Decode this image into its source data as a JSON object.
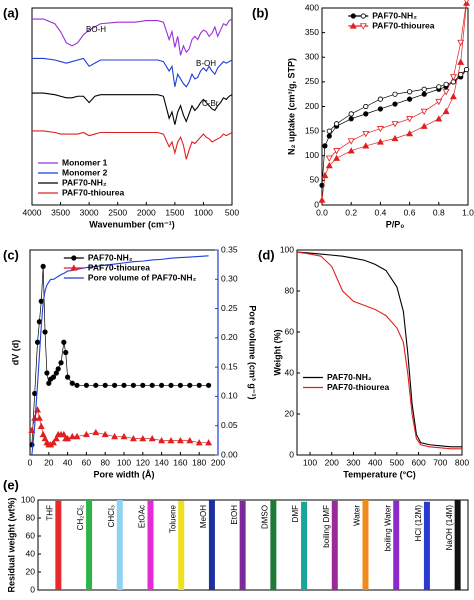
{
  "chart_data": [
    {
      "type": "line",
      "label": "(a)",
      "xlabel": "Wavenumber (cm⁻¹)",
      "x": [
        4000,
        3800,
        3600,
        3500,
        3400,
        3300,
        3200,
        3100,
        3000,
        2900,
        2800,
        2500,
        2200,
        2000,
        1800,
        1700,
        1600,
        1550,
        1500,
        1450,
        1400,
        1350,
        1300,
        1250,
        1200,
        1150,
        1100,
        1050,
        1000,
        950,
        900,
        850,
        800,
        750,
        700,
        650,
        600,
        550,
        500
      ],
      "xlim": [
        4000,
        500
      ],
      "xticks": [
        4000,
        3500,
        3000,
        2500,
        2000,
        1500,
        1000,
        500
      ],
      "ylim": [
        -25,
        100
      ],
      "legend": "lower left",
      "annotations": [
        "BO-H",
        "B-OH",
        "C-Br"
      ],
      "series": [
        {
          "name": "Monomer 1",
          "color": "#9b30d9",
          "values": [
            93,
            93,
            90,
            85,
            78,
            76,
            78,
            83,
            86,
            88,
            90,
            91,
            91,
            92,
            92,
            91,
            80,
            85,
            75,
            82,
            70,
            76,
            72,
            74,
            80,
            82,
            80,
            84,
            86,
            85,
            82,
            84,
            88,
            82,
            86,
            90,
            89,
            92,
            93
          ]
        },
        {
          "name": "Monomer 2",
          "color": "#1f3fd6",
          "values": [
            68,
            68,
            67,
            66,
            65,
            66,
            67,
            68,
            63,
            65,
            67,
            67,
            67,
            67,
            67,
            66,
            60,
            63,
            50,
            58,
            55,
            52,
            50,
            53,
            58,
            55,
            56,
            60,
            62,
            60,
            63,
            60,
            58,
            62,
            64,
            66,
            65,
            66,
            67
          ]
        },
        {
          "name": "PAF70-NH₂",
          "color": "#000000",
          "values": [
            46,
            46,
            45,
            44,
            43,
            43,
            44,
            44,
            40,
            44,
            45,
            45,
            45,
            45,
            45,
            44,
            30,
            34,
            26,
            34,
            38,
            32,
            28,
            33,
            38,
            35,
            37,
            40,
            42,
            40,
            38,
            36,
            35,
            38,
            40,
            43,
            42,
            44,
            45
          ]
        },
        {
          "name": "PAF70-thiourea",
          "color": "#e02020",
          "values": [
            22,
            22,
            21,
            20,
            20,
            20,
            20,
            21,
            19,
            20,
            21,
            21,
            21,
            21,
            21,
            20,
            12,
            15,
            8,
            15,
            18,
            13,
            4,
            10,
            15,
            14,
            16,
            18,
            20,
            18,
            17,
            15,
            16,
            17,
            18,
            20,
            19,
            20,
            21
          ]
        }
      ]
    },
    {
      "type": "line",
      "label": "(b)",
      "xlabel": "P/P₀",
      "ylabel": "N₂ uptake (cm³/g, STP)",
      "x": [
        0.0,
        0.02,
        0.05,
        0.1,
        0.2,
        0.3,
        0.4,
        0.5,
        0.6,
        0.7,
        0.8,
        0.85,
        0.9,
        0.95,
        0.99
      ],
      "xlim": [
        0,
        1
      ],
      "xticks": [
        {
          "value": 0,
          "label": "0.0"
        },
        0.2,
        0.4,
        0.6,
        0.8,
        {
          "value": 1,
          "label": "1.0"
        }
      ],
      "ylim": [
        0,
        400
      ],
      "yticks": [
        0,
        50,
        100,
        150,
        200,
        250,
        300,
        350,
        400
      ],
      "legend": "upper center",
      "series": [
        {
          "name": "PAF70-NH₂",
          "color": "#000000",
          "marker": "circle",
          "values": [
            40,
            120,
            140,
            160,
            175,
            185,
            195,
            205,
            215,
            225,
            235,
            240,
            250,
            260,
            275
          ]
        },
        {
          "color": "#000000",
          "marker": "open-circle",
          "values": [
            null,
            null,
            150,
            165,
            185,
            200,
            215,
            225,
            230,
            235,
            240,
            245,
            250,
            265,
            275
          ]
        },
        {
          "name": "PAF70-thiourea",
          "color": "#e02020",
          "marker": "triangle",
          "values": [
            10,
            60,
            80,
            95,
            110,
            120,
            128,
            135,
            145,
            160,
            175,
            190,
            220,
            290,
            410
          ]
        },
        {
          "color": "#e02020",
          "marker": "open-triangle",
          "values": [
            null,
            null,
            95,
            110,
            130,
            145,
            155,
            165,
            175,
            190,
            210,
            230,
            260,
            330,
            415
          ]
        }
      ]
    },
    {
      "type": "line",
      "label": "(c)",
      "xlabel": "Pore width (Å)",
      "ylabel": "dV (d)",
      "y2label": "Pore volume (cm³ g⁻¹)",
      "x": [
        2,
        5,
        8,
        10,
        12,
        14,
        16,
        18,
        20,
        22,
        25,
        28,
        30,
        33,
        36,
        38,
        40,
        45,
        50,
        60,
        70,
        80,
        90,
        100,
        110,
        120,
        130,
        140,
        150,
        160,
        170,
        180,
        190
      ],
      "xlim": [
        0,
        200
      ],
      "xticks": [
        0,
        20,
        40,
        60,
        80,
        100,
        120,
        140,
        160,
        180,
        200
      ],
      "ylim": [
        0,
        1
      ],
      "y2lim": [
        0,
        0.35
      ],
      "y2ticks": [
        {
          "value": 0,
          "label": "0.00"
        },
        0.05,
        {
          "value": 0.1,
          "label": "0.10"
        },
        0.15,
        {
          "value": 0.2,
          "label": "0.20"
        },
        0.25,
        {
          "value": 0.3,
          "label": "0.30"
        },
        0.35
      ],
      "legend": "upper center",
      "series": [
        {
          "name": "PAF70-NH₂",
          "color": "#000000",
          "marker": "circle",
          "values": [
            0.05,
            0.3,
            0.55,
            0.65,
            0.75,
            0.92,
            0.6,
            0.4,
            0.35,
            0.37,
            0.38,
            0.4,
            0.42,
            0.45,
            0.55,
            0.5,
            0.38,
            0.35,
            0.34,
            0.34,
            0.34,
            0.34,
            0.34,
            0.34,
            0.34,
            0.34,
            0.34,
            0.34,
            0.34,
            0.34,
            0.34,
            0.34,
            0.34
          ]
        },
        {
          "name": "PAF70-thiourea",
          "color": "#e02020",
          "marker": "triangle",
          "values": [
            0.12,
            0.18,
            0.22,
            0.18,
            0.14,
            0.1,
            0.08,
            0.06,
            0.05,
            0.05,
            0.06,
            0.08,
            0.1,
            0.1,
            0.1,
            0.08,
            0.08,
            0.09,
            0.09,
            0.1,
            0.11,
            0.1,
            0.09,
            0.09,
            0.08,
            0.08,
            0.08,
            0.07,
            0.07,
            0.07,
            0.07,
            0.06,
            0.06
          ]
        },
        {
          "name": "Pore volume of PAF70-NH₂",
          "color": "#1f3fd6",
          "axis": "y2",
          "values": [
            0,
            0.05,
            0.12,
            0.17,
            0.22,
            0.26,
            0.28,
            0.29,
            0.295,
            0.3,
            0.3,
            0.303,
            0.305,
            0.308,
            0.31,
            0.312,
            0.314,
            0.315,
            0.317,
            0.32,
            0.322,
            0.324,
            0.326,
            0.328,
            0.33,
            0.331,
            0.333,
            0.334,
            0.336,
            0.337,
            0.338,
            0.339,
            0.34
          ]
        }
      ]
    },
    {
      "type": "line",
      "label": "(d)",
      "xlabel": "Temperature (°C)",
      "ylabel": "Weight (%)",
      "x": [
        40,
        100,
        150,
        200,
        250,
        300,
        350,
        400,
        450,
        500,
        530,
        550,
        570,
        590,
        610,
        650,
        700,
        750,
        800
      ],
      "xlim": [
        40,
        800
      ],
      "xticks": [
        100,
        200,
        300,
        400,
        500,
        600,
        700,
        800
      ],
      "ylim": [
        0,
        100
      ],
      "yticks": [
        0,
        20,
        40,
        60,
        80,
        100
      ],
      "legend": "center left",
      "series": [
        {
          "name": "PAF70-NH₂",
          "color": "#000000",
          "values": [
            99,
            98.5,
            98,
            97.5,
            97,
            96,
            95,
            93,
            90,
            82,
            70,
            50,
            25,
            10,
            6,
            5,
            4.5,
            4,
            4
          ]
        },
        {
          "name": "PAF70-thiourea",
          "color": "#e02020",
          "values": [
            99,
            98,
            97,
            92,
            80,
            75,
            73,
            71,
            68,
            62,
            55,
            40,
            20,
            8,
            5,
            4,
            3.5,
            3,
            3
          ]
        }
      ]
    },
    {
      "type": "bar",
      "label": "(e)",
      "ylabel": "Residual weight (wt%)",
      "categories": [
        "THF",
        "CH₂Cl₂",
        "CHCl₃",
        "EtOAc",
        "Toluene",
        "MeOH",
        "EtOH",
        "DMSO",
        "DMF",
        "boiling DMF",
        "Water",
        "boiling Water",
        "HCl (12M)",
        "NaOH (14M)"
      ],
      "values": [
        99,
        100,
        100,
        99,
        99,
        100,
        99,
        100,
        98,
        99,
        100,
        99,
        98,
        100
      ],
      "colors": [
        "#e8282b",
        "#2db34a",
        "#8ed3f0",
        "#e62ad6",
        "#f0e020",
        "#1e2fa0",
        "#7a2a9a",
        "#1f7a3a",
        "#1aa59a",
        "#9a2a9a",
        "#f08a1a",
        "#8a2acb",
        "#2a3ad0",
        "#111111"
      ],
      "ylim": [
        0,
        100
      ],
      "yticks": [
        0,
        20,
        40,
        60,
        80,
        100
      ]
    }
  ]
}
